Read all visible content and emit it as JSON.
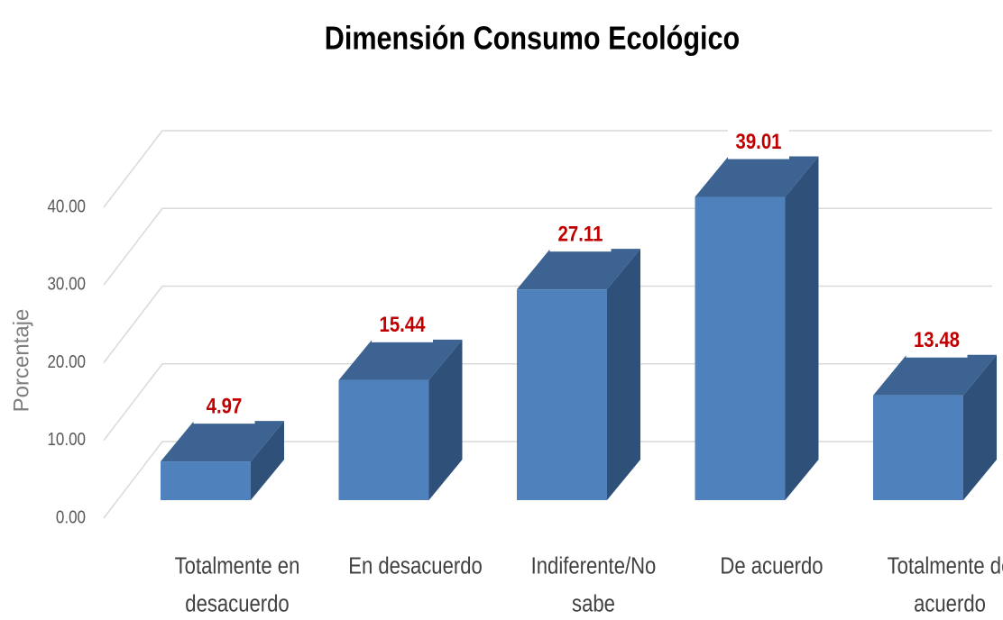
{
  "chart_data": {
    "type": "bar3d",
    "title": "Dimensión Consumo Ecológico",
    "ylabel": "Porcentaje",
    "categories": [
      "Totalmente en desacuerdo",
      "En desacuerdo",
      "Indiferente/No sabe",
      "De acuerdo",
      "Totalmente de acuerdo"
    ],
    "values": [
      4.97,
      15.44,
      27.11,
      39.01,
      13.48
    ],
    "color": "#4f81bd",
    "ylim": [
      0,
      40
    ],
    "yticks": [
      {
        "value": 0,
        "label": "0.00"
      },
      {
        "value": 10,
        "label": "10.00"
      },
      {
        "value": 20,
        "label": "20.00"
      },
      {
        "value": 30,
        "label": "30.00"
      },
      {
        "value": 40,
        "label": "40.00"
      }
    ],
    "grid": true
  }
}
